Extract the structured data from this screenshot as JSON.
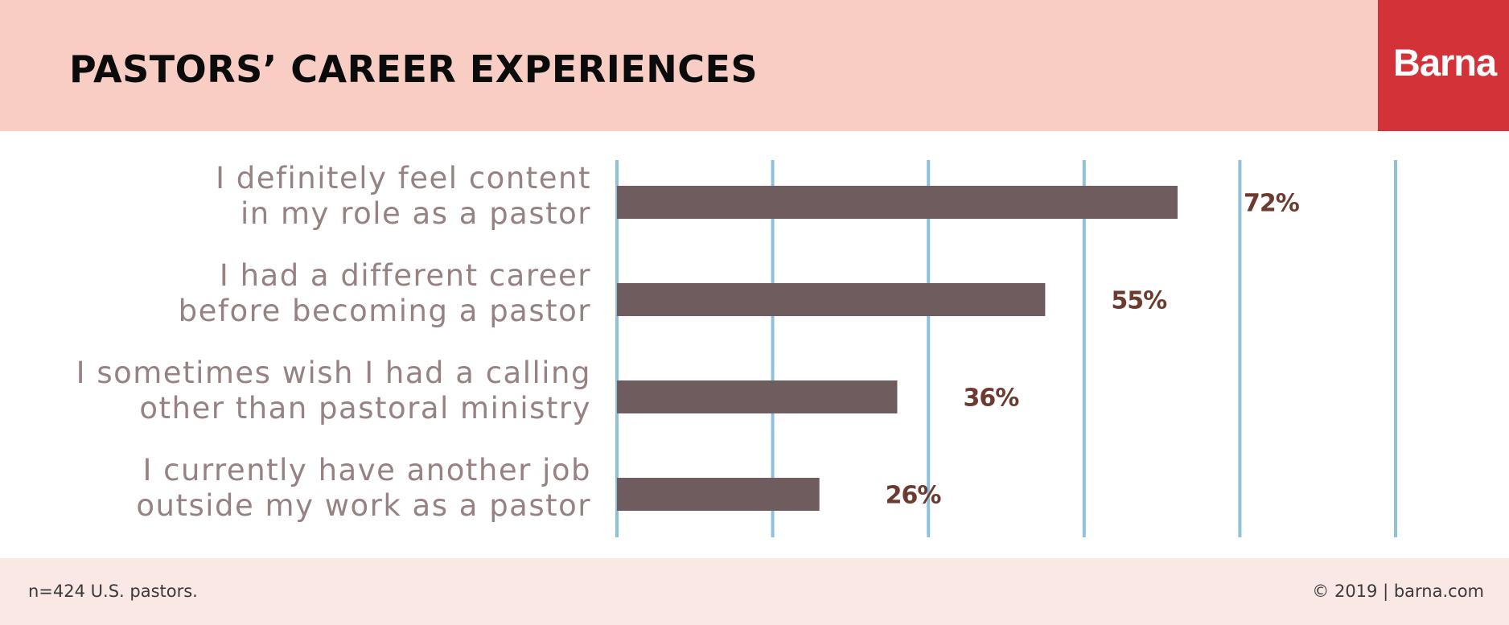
{
  "header": {
    "title": "PASTORS’ CAREER EXPERIENCES",
    "logo_text": "Barna"
  },
  "chart_data": {
    "type": "bar",
    "orientation": "horizontal",
    "title": "PASTORS’ CAREER EXPERIENCES",
    "categories": [
      [
        "I definitely feel content",
        "in my role as a pastor"
      ],
      [
        "I had a different career",
        "before becoming a pastor"
      ],
      [
        "I sometimes wish I had a calling",
        "other than pastoral ministry"
      ],
      [
        "I currently have another job",
        "outside my  work as a pastor"
      ]
    ],
    "values": [
      72,
      55,
      36,
      26
    ],
    "value_labels": [
      "72%",
      "55%",
      "36%",
      "26%"
    ],
    "xlim": [
      0,
      100
    ],
    "gridlines": [
      0,
      20,
      40,
      60,
      80,
      100
    ],
    "grid": true,
    "legend": "none",
    "colors": {
      "bar": "#6f5c5e",
      "value_label": "#6d3a2f",
      "gridline": "#8fc2da",
      "category_label": "#978283"
    }
  },
  "footer": {
    "note": "n=424 U.S. pastors.",
    "copyright": "© 2019 | barna.com"
  }
}
